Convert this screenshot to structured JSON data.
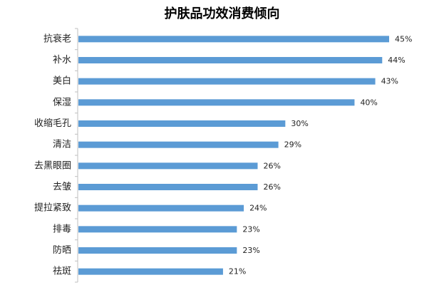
{
  "chart_data": {
    "type": "bar",
    "orientation": "horizontal",
    "title": "护肤品功效消费倾向",
    "categories": [
      "抗衰老",
      "补水",
      "美白",
      "保湿",
      "收缩毛孔",
      "清洁",
      "去黑眼圈",
      "去皱",
      "提拉紧致",
      "排毒",
      "防晒",
      "祛斑"
    ],
    "values": [
      45,
      44,
      43,
      40,
      30,
      29,
      26,
      26,
      24,
      23,
      23,
      21
    ],
    "value_labels": [
      "45%",
      "44%",
      "43%",
      "40%",
      "30%",
      "29%",
      "26%",
      "26%",
      "24%",
      "23%",
      "23%",
      "21%"
    ],
    "unit": "%",
    "xlim": [
      0,
      50
    ],
    "grid": false,
    "legend": "none",
    "bar_color": "#5B9BD5"
  }
}
